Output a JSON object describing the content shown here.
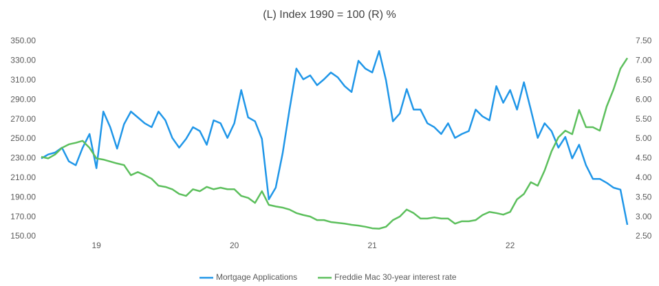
{
  "chart_data": {
    "type": "line",
    "title": "(L) Index 1990 = 100 (R) %",
    "x": [
      18.6,
      18.65,
      18.7,
      18.75,
      18.8,
      18.85,
      18.9,
      18.95,
      19,
      19.05,
      19.1,
      19.15,
      19.2,
      19.25,
      19.3,
      19.35,
      19.4,
      19.45,
      19.5,
      19.55,
      19.6,
      19.65,
      19.7,
      19.75,
      19.8,
      19.85,
      19.9,
      19.95,
      20,
      20.05,
      20.1,
      20.15,
      20.2,
      20.25,
      20.3,
      20.35,
      20.4,
      20.45,
      20.5,
      20.55,
      20.6,
      20.65,
      20.7,
      20.75,
      20.8,
      20.85,
      20.9,
      20.95,
      21,
      21.05,
      21.1,
      21.15,
      21.2,
      21.25,
      21.3,
      21.35,
      21.4,
      21.45,
      21.5,
      21.55,
      21.6,
      21.65,
      21.7,
      21.75,
      21.8,
      21.85,
      21.9,
      21.95,
      22,
      22.05,
      22.1,
      22.15,
      22.2,
      22.25,
      22.3,
      22.35,
      22.4,
      22.45,
      22.5,
      22.55,
      22.6,
      22.65,
      22.7,
      22.75,
      22.8,
      22.85
    ],
    "series": [
      {
        "name": "Mortgage Applications",
        "color": "#1f96e8",
        "axis": "y",
        "values": [
          230,
          234,
          236,
          241,
          227,
          223,
          241,
          255,
          220,
          278,
          262,
          240,
          265,
          278,
          272,
          266,
          262,
          278,
          269,
          251,
          241,
          250,
          262,
          258,
          244,
          269,
          266,
          251,
          266,
          300,
          272,
          268,
          250,
          188,
          200,
          235,
          280,
          322,
          311,
          315,
          305,
          311,
          318,
          313,
          304,
          298,
          330,
          322,
          318,
          340,
          310,
          268,
          276,
          301,
          280,
          280,
          266,
          262,
          255,
          266,
          251,
          255,
          258,
          280,
          273,
          269,
          304,
          287,
          300,
          280,
          308,
          280,
          251,
          266,
          258,
          241,
          252,
          230,
          244,
          223,
          209,
          209,
          205,
          200,
          198,
          162
        ]
      },
      {
        "name": "Freddie Mac 30-year interest rate",
        "color": "#5cbf5c",
        "axis": "y2",
        "values": [
          4.54,
          4.5,
          4.6,
          4.77,
          4.86,
          4.9,
          4.95,
          4.77,
          4.5,
          4.47,
          4.42,
          4.37,
          4.33,
          4.07,
          4.15,
          4.07,
          3.98,
          3.8,
          3.77,
          3.71,
          3.59,
          3.54,
          3.71,
          3.66,
          3.77,
          3.71,
          3.75,
          3.71,
          3.71,
          3.54,
          3.49,
          3.36,
          3.66,
          3.31,
          3.27,
          3.24,
          3.19,
          3.1,
          3.05,
          3.01,
          2.92,
          2.92,
          2.87,
          2.85,
          2.83,
          2.8,
          2.78,
          2.75,
          2.71,
          2.7,
          2.75,
          2.92,
          3.01,
          3.19,
          3.1,
          2.96,
          2.96,
          2.99,
          2.96,
          2.96,
          2.83,
          2.89,
          2.89,
          2.92,
          3.05,
          3.13,
          3.1,
          3.06,
          3.13,
          3.45,
          3.59,
          3.89,
          3.8,
          4.19,
          4.68,
          5.04,
          5.21,
          5.12,
          5.74,
          5.3,
          5.3,
          5.21,
          5.83,
          6.27,
          6.8,
          7.07
        ]
      }
    ],
    "xlim": [
      18.6,
      22.85
    ],
    "xticks": [
      19,
      20,
      21,
      22
    ],
    "ylim": [
      150,
      350
    ],
    "yticks": [
      {
        "value": 150,
        "label": "150.00"
      },
      {
        "value": 170,
        "label": "170.00"
      },
      {
        "value": 190,
        "label": "190.00"
      },
      {
        "value": 210,
        "label": "210.00"
      },
      {
        "value": 230,
        "label": "230.00"
      },
      {
        "value": 250,
        "label": "250.00"
      },
      {
        "value": 270,
        "label": "270.00"
      },
      {
        "value": 290,
        "label": "290.00"
      },
      {
        "value": 310,
        "label": "310.00"
      },
      {
        "value": 330,
        "label": "330.00"
      },
      {
        "value": 350,
        "label": "350.00"
      }
    ],
    "y2lim": [
      2.5,
      7.5
    ],
    "y2ticks": [
      {
        "value": 2.5,
        "label": "2.50"
      },
      {
        "value": 3,
        "label": "3.00"
      },
      {
        "value": 3.5,
        "label": "3.50"
      },
      {
        "value": 4,
        "label": "4.00"
      },
      {
        "value": 4.5,
        "label": "4.50"
      },
      {
        "value": 5,
        "label": "5.00"
      },
      {
        "value": 5.5,
        "label": "5.50"
      },
      {
        "value": 6,
        "label": "6.00"
      },
      {
        "value": 6.5,
        "label": "6.50"
      },
      {
        "value": 7,
        "label": "7.00"
      },
      {
        "value": 7.5,
        "label": "7.50"
      }
    ],
    "grid": false,
    "legend": "bottom"
  }
}
